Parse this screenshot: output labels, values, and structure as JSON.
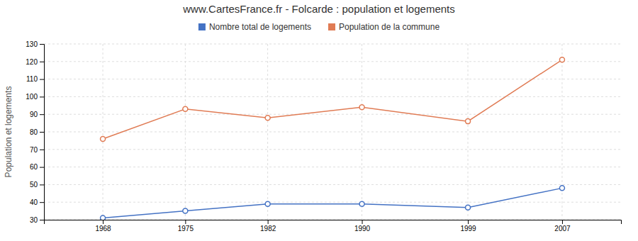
{
  "chart_data": {
    "type": "line",
    "title": "www.CartesFrance.fr - Folcarde : population et logements",
    "y_label": "Population et logements",
    "x": [
      1968,
      1975,
      1982,
      1990,
      1999,
      2007
    ],
    "series": [
      {
        "name": "Nombre total de logements",
        "color": "#4472c4",
        "marker": "circle",
        "values": [
          31,
          35,
          39,
          39,
          37,
          48
        ]
      },
      {
        "name": "Population de la commune",
        "color": "#e07b54",
        "marker": "circle",
        "values": [
          76,
          93,
          88,
          94,
          86,
          121
        ]
      }
    ],
    "xlim": [
      1963,
      2012
    ],
    "xticks": [
      1968,
      1975,
      1982,
      1990,
      1999,
      2007
    ],
    "ylim": [
      30,
      130
    ],
    "yticks": [
      30,
      40,
      50,
      60,
      70,
      80,
      90,
      100,
      110,
      120,
      130
    ],
    "grid": true,
    "legend": "top"
  }
}
